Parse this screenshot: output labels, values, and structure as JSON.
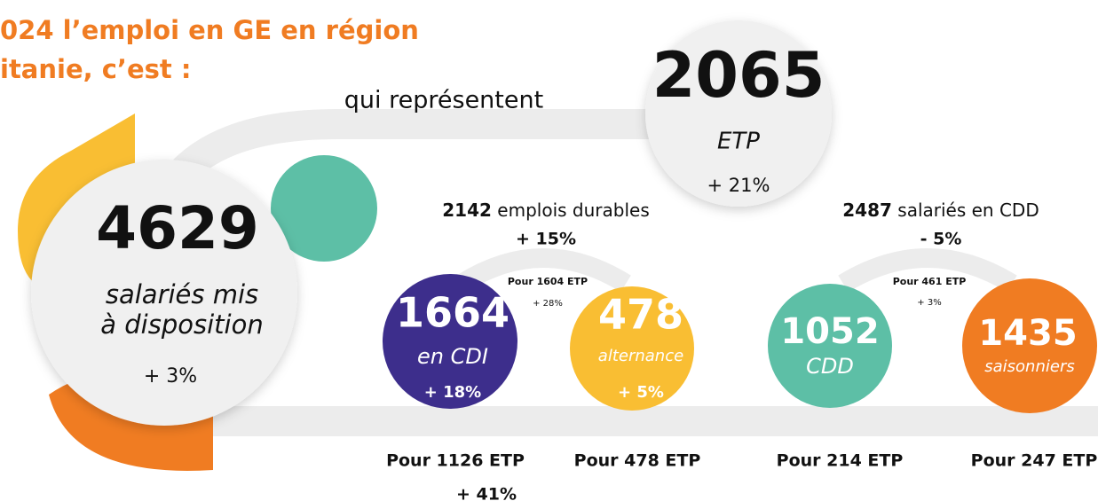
{
  "header": {
    "title_lines": [
      "024 l’emploi en GE en région",
      "itanie, c’est :"
    ]
  },
  "connector": "qui représentent",
  "main": {
    "number": "4629",
    "label_lines": [
      "salariés mis",
      "à disposition"
    ],
    "change": "+ 3%"
  },
  "etp": {
    "number": "2065",
    "label": "ETP",
    "change": "+ 21%"
  },
  "durables": {
    "heading": {
      "number": "2142",
      "text": "emplois durables"
    },
    "change": "+ 15%",
    "arc_note": {
      "text": "Pour 1604 ETP",
      "change": "+ 28%"
    },
    "cdi": {
      "number": "1664",
      "label": "en CDI",
      "change": "+ 18%",
      "footer": "Pour 1126 ETP",
      "footer_change": "+ 41%"
    },
    "alternance": {
      "number": "478",
      "label": "alternance",
      "change": "+ 5%",
      "footer": "Pour 478 ETP"
    }
  },
  "cdd_group": {
    "heading": {
      "number": "2487",
      "text": "salariés en CDD"
    },
    "change": "- 5%",
    "arc_note": {
      "text": "Pour 461 ETP",
      "change": "+ 3%"
    },
    "cdd": {
      "number": "1052",
      "label": "CDD",
      "footer": "Pour 214 ETP"
    },
    "saisonniers": {
      "number": "1435",
      "label": "saisonniers",
      "footer": "Pour 247 ETP"
    }
  }
}
